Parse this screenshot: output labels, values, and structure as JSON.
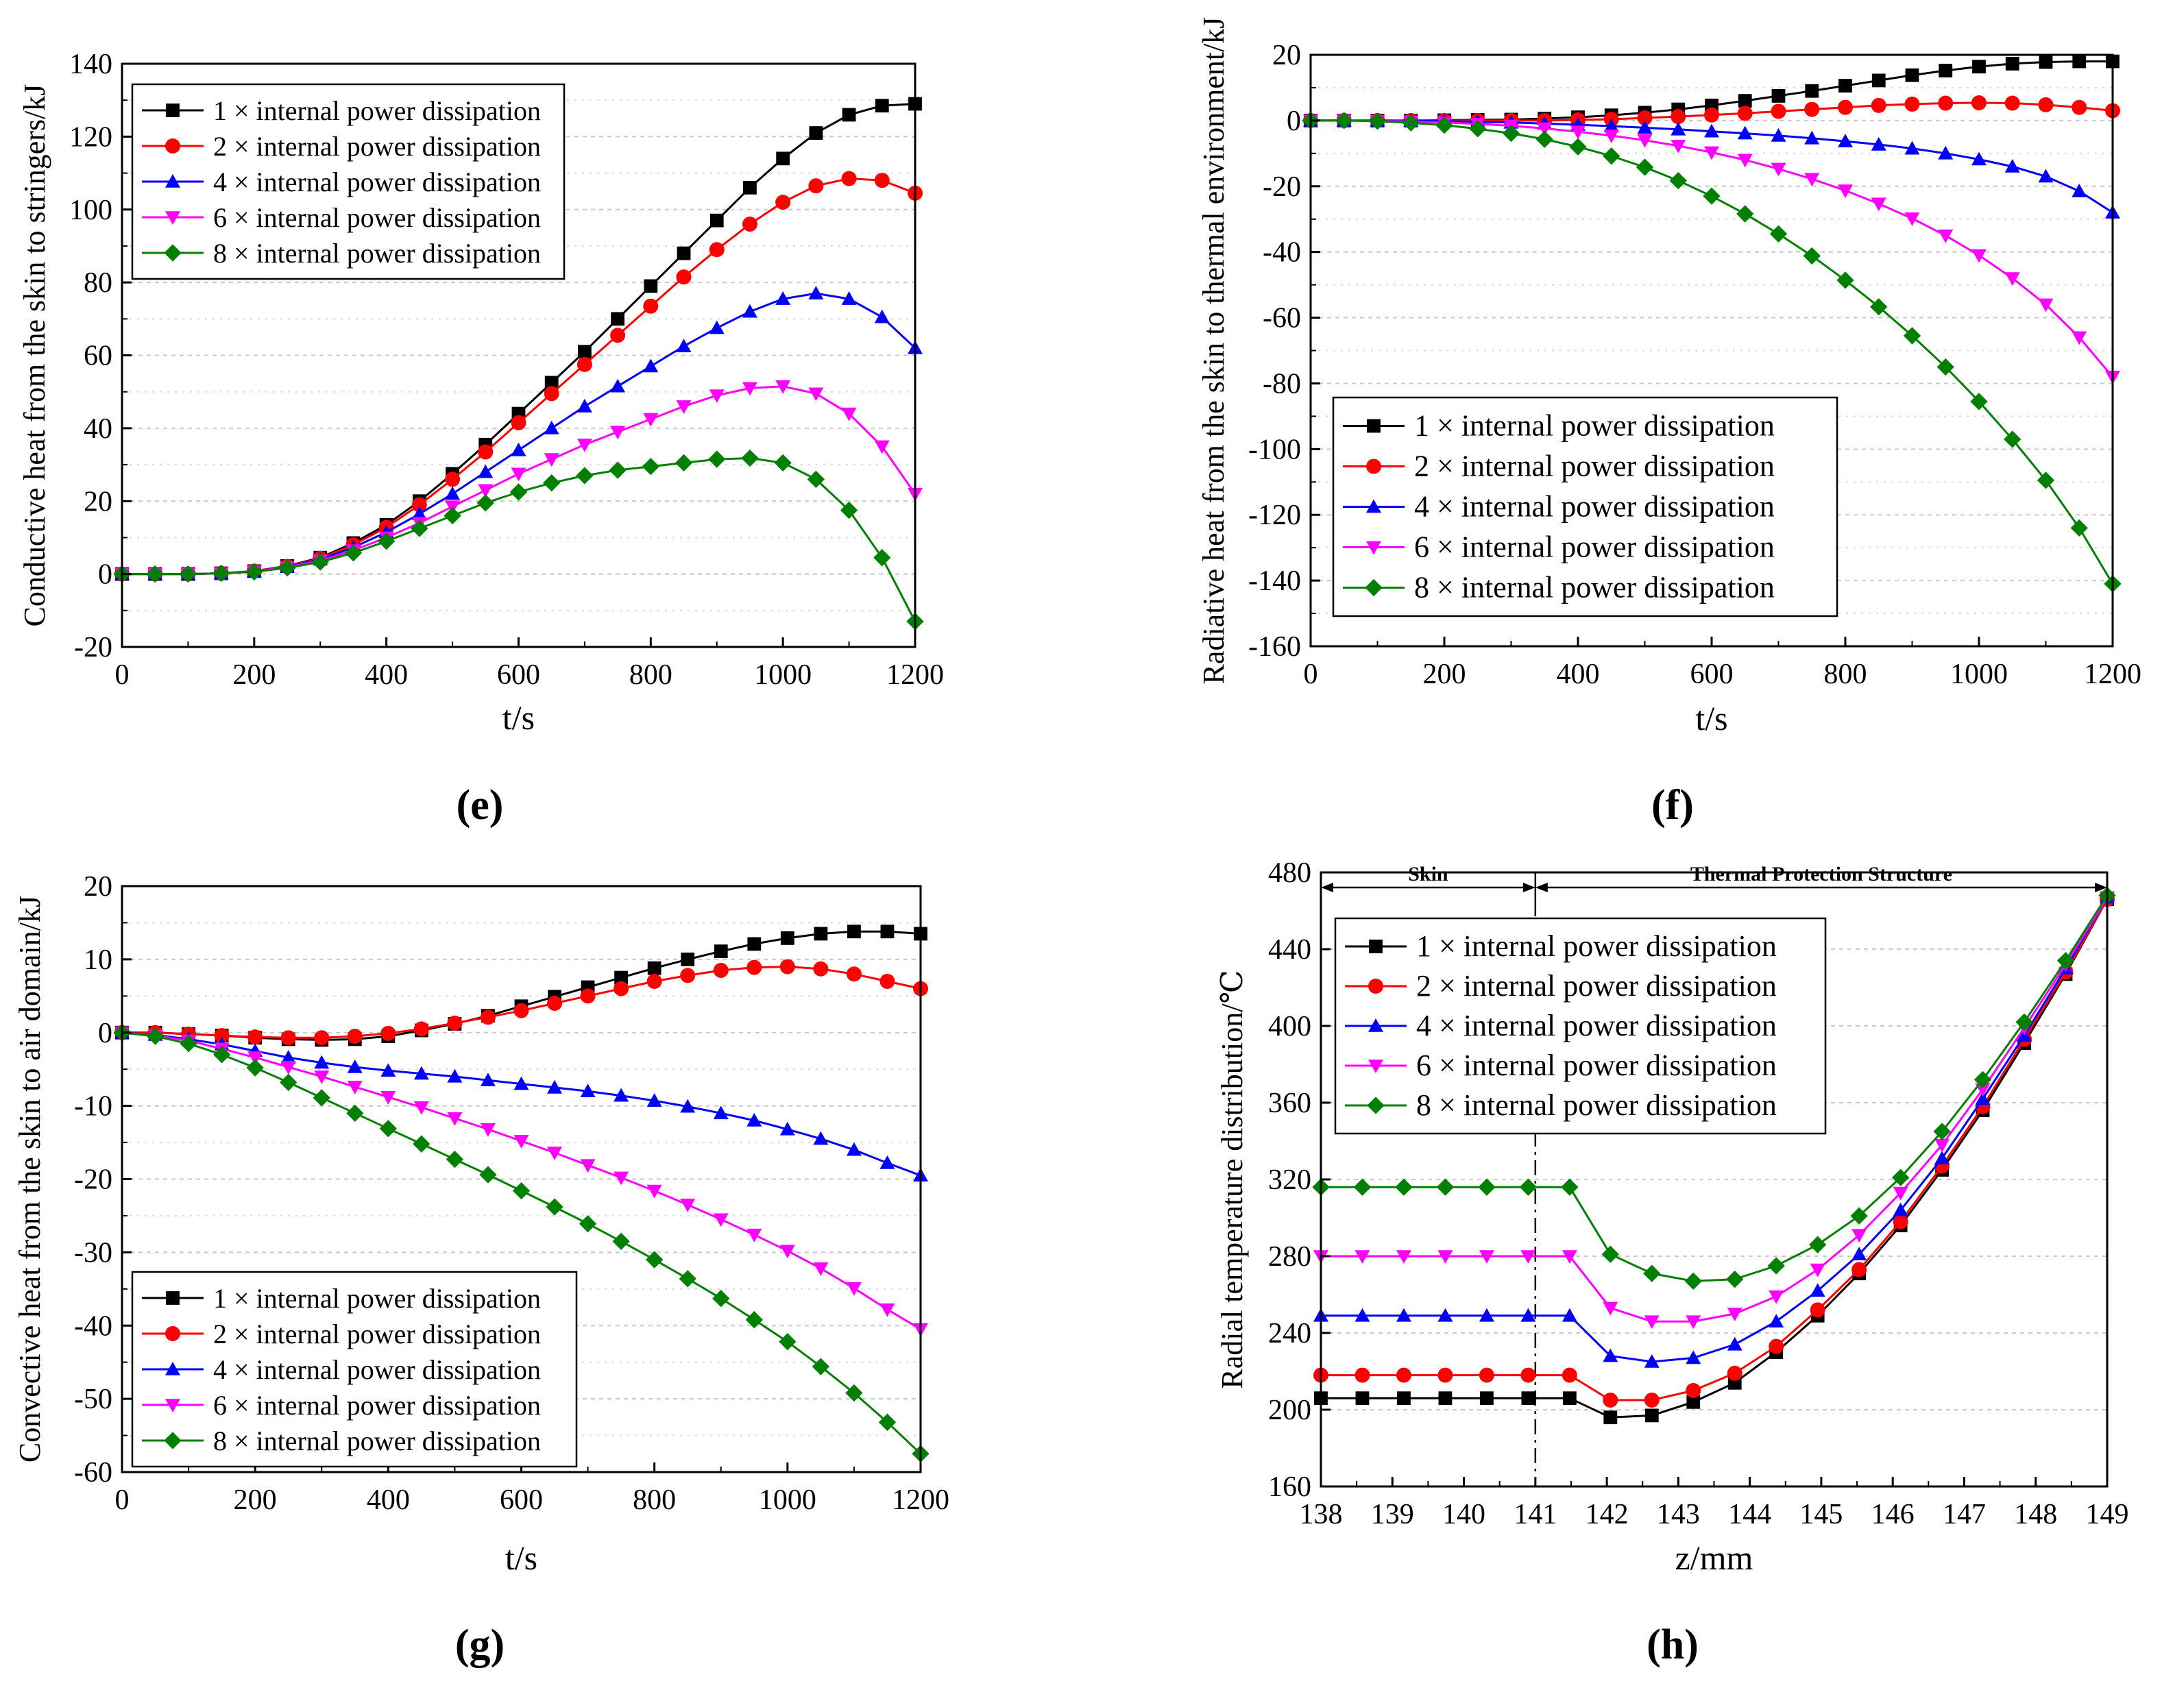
{
  "chart_data": [
    {
      "id": "e",
      "type": "line",
      "caption": "(e)",
      "xlabel": "t/s",
      "ylabel": "Conductive heat from the skin to stringers/kJ",
      "xlim": [
        0,
        1200
      ],
      "ylim": [
        -20,
        140
      ],
      "xticks": [
        "0",
        "200",
        "400",
        "600",
        "800",
        "1000",
        "1200"
      ],
      "yticks": [
        "-20",
        "0",
        "20",
        "40",
        "60",
        "80",
        "100",
        "120",
        "140"
      ],
      "legend_position": "top-left",
      "x_step": 50,
      "series": [
        {
          "name": "1 × internal power dissipation",
          "color": "#000000",
          "marker": "square",
          "values": [
            0,
            0,
            0,
            0.2,
            0.8,
            2.2,
            4.5,
            8.5,
            13.5,
            20,
            27.5,
            35.5,
            44,
            52.5,
            61,
            70,
            79,
            88,
            97,
            106,
            114,
            121,
            126,
            128.5,
            129
          ]
        },
        {
          "name": "2 × internal power dissipation",
          "color": "#ff0000",
          "marker": "circle",
          "values": [
            0,
            0,
            0,
            0.2,
            0.8,
            2.1,
            4.3,
            8,
            12.8,
            19,
            26,
            33.5,
            41.5,
            49.5,
            57.5,
            65.5,
            73.5,
            81.5,
            89,
            96,
            102,
            106.5,
            108.5,
            108,
            104.5
          ]
        },
        {
          "name": "4 × internal power dissipation",
          "color": "#0000ff",
          "marker": "triangle-up",
          "values": [
            0,
            0,
            0,
            0.2,
            0.7,
            2,
            4,
            7.3,
            11.5,
            16.5,
            22,
            28,
            34,
            40,
            46,
            51.5,
            57,
            62.5,
            67.5,
            72,
            75.5,
            77,
            75.5,
            70.5,
            62
          ]
        },
        {
          "name": "6 × internal power dissipation",
          "color": "#ff00ff",
          "marker": "triangle-down",
          "values": [
            0,
            0,
            0,
            0.2,
            0.7,
            1.9,
            3.7,
            6.5,
            10,
            14,
            18.5,
            23,
            27.5,
            31.5,
            35.5,
            39,
            42.5,
            46,
            49,
            51,
            51.5,
            49.5,
            44,
            35,
            22
          ]
        },
        {
          "name": "8 × internal power dissipation",
          "color": "#008000",
          "marker": "diamond",
          "values": [
            0,
            0,
            0,
            0.2,
            0.6,
            1.7,
            3.3,
            5.8,
            9,
            12.5,
            16,
            19.5,
            22.5,
            25,
            27,
            28.5,
            29.5,
            30.5,
            31.5,
            31.8,
            30.5,
            26,
            17.5,
            4.5,
            -13
          ]
        }
      ]
    },
    {
      "id": "f",
      "type": "line",
      "caption": "(f)",
      "xlabel": "t/s",
      "ylabel": "Radiative heat from the skin to thermal environment/kJ",
      "xlim": [
        0,
        1200
      ],
      "ylim": [
        -160,
        20
      ],
      "xticks": [
        "0",
        "200",
        "400",
        "600",
        "800",
        "1000",
        "1200"
      ],
      "yticks": [
        "-160",
        "-140",
        "-120",
        "-100",
        "-80",
        "-60",
        "-40",
        "-20",
        "0",
        "20"
      ],
      "legend_position": "bottom-left",
      "x_step": 50,
      "series": [
        {
          "name": "1 × internal power dissipation",
          "color": "#000000",
          "marker": "square",
          "values": [
            0,
            0,
            0,
            0,
            0.1,
            0.2,
            0.3,
            0.6,
            1,
            1.6,
            2.4,
            3.4,
            4.6,
            6,
            7.5,
            9,
            10.6,
            12.2,
            13.8,
            15.2,
            16.4,
            17.3,
            17.8,
            18,
            18
          ]
        },
        {
          "name": "2 × internal power dissipation",
          "color": "#ff0000",
          "marker": "circle",
          "values": [
            0,
            0,
            0,
            0,
            0,
            0,
            0,
            0,
            0.2,
            0.4,
            0.8,
            1.2,
            1.7,
            2.2,
            2.8,
            3.4,
            4,
            4.6,
            5,
            5.3,
            5.4,
            5.3,
            4.8,
            4,
            3
          ]
        },
        {
          "name": "4 × internal power dissipation",
          "color": "#0000ff",
          "marker": "triangle-up",
          "values": [
            0,
            0,
            0,
            -0.1,
            -0.2,
            -0.4,
            -0.6,
            -0.9,
            -1.3,
            -1.7,
            -2.2,
            -2.7,
            -3.3,
            -3.9,
            -4.6,
            -5.4,
            -6.3,
            -7.3,
            -8.5,
            -10,
            -11.8,
            -14,
            -17,
            -21.5,
            -28
          ]
        },
        {
          "name": "6 × internal power dissipation",
          "color": "#ff00ff",
          "marker": "triangle-down",
          "values": [
            0,
            0,
            -0.1,
            -0.3,
            -0.6,
            -1,
            -1.6,
            -2.4,
            -3.4,
            -4.6,
            -6,
            -7.7,
            -9.7,
            -12,
            -14.7,
            -17.8,
            -21.3,
            -25.3,
            -29.8,
            -35,
            -41,
            -48,
            -56,
            -66,
            -78
          ]
        },
        {
          "name": "8 × internal power dissipation",
          "color": "#008000",
          "marker": "diamond",
          "values": [
            0,
            0,
            -0.2,
            -0.7,
            -1.4,
            -2.5,
            -3.9,
            -5.7,
            -8,
            -10.8,
            -14.2,
            -18.3,
            -23,
            -28.4,
            -34.5,
            -41.2,
            -48.6,
            -56.7,
            -65.5,
            -75,
            -85.5,
            -97,
            -109.5,
            -124,
            -141
          ]
        }
      ]
    },
    {
      "id": "g",
      "type": "line",
      "caption": "(g)",
      "xlabel": "t/s",
      "ylabel": "Convective heat from the skin to air domain/kJ",
      "xlim": [
        0,
        1200
      ],
      "ylim": [
        -60,
        20
      ],
      "xticks": [
        "0",
        "200",
        "400",
        "600",
        "800",
        "1000",
        "1200"
      ],
      "yticks": [
        "-60",
        "-50",
        "-40",
        "-30",
        "-20",
        "-10",
        "0",
        "10",
        "20"
      ],
      "legend_position": "bottom-left",
      "x_step": 50,
      "series": [
        {
          "name": "1 × internal power dissipation",
          "color": "#000000",
          "marker": "square",
          "values": [
            0,
            0,
            -0.2,
            -0.4,
            -0.7,
            -0.9,
            -1,
            -0.9,
            -0.5,
            0.3,
            1.2,
            2.3,
            3.6,
            4.9,
            6.2,
            7.5,
            8.8,
            10,
            11.1,
            12.1,
            12.9,
            13.5,
            13.8,
            13.8,
            13.5
          ]
        },
        {
          "name": "2 × internal power dissipation",
          "color": "#ff0000",
          "marker": "circle",
          "values": [
            0,
            0,
            -0.2,
            -0.4,
            -0.6,
            -0.7,
            -0.7,
            -0.5,
            -0.1,
            0.5,
            1.3,
            2.1,
            3,
            4,
            5,
            6,
            7,
            7.8,
            8.5,
            8.9,
            9,
            8.7,
            8,
            7,
            6
          ]
        },
        {
          "name": "4 × internal power dissipation",
          "color": "#0000ff",
          "marker": "triangle-up",
          "values": [
            0,
            -0.3,
            -0.9,
            -1.6,
            -2.5,
            -3.4,
            -4.1,
            -4.7,
            -5.2,
            -5.6,
            -6,
            -6.5,
            -7,
            -7.5,
            -8,
            -8.6,
            -9.3,
            -10.1,
            -11,
            -12,
            -13.2,
            -14.5,
            -16,
            -17.8,
            -19.5
          ]
        },
        {
          "name": "6 × internal power dissipation",
          "color": "#ff00ff",
          "marker": "triangle-down",
          "values": [
            0,
            -0.4,
            -1.1,
            -2.2,
            -3.4,
            -4.7,
            -6,
            -7.4,
            -8.8,
            -10.2,
            -11.7,
            -13.2,
            -14.8,
            -16.4,
            -18.1,
            -19.8,
            -21.6,
            -23.5,
            -25.5,
            -27.6,
            -29.8,
            -32.2,
            -34.9,
            -37.8,
            -40.5
          ]
        },
        {
          "name": "8 × internal power dissipation",
          "color": "#008000",
          "marker": "diamond",
          "values": [
            0,
            -0.5,
            -1.5,
            -3,
            -4.8,
            -6.8,
            -8.9,
            -11,
            -13.1,
            -15.2,
            -17.3,
            -19.4,
            -21.6,
            -23.8,
            -26.1,
            -28.5,
            -31,
            -33.6,
            -36.3,
            -39.2,
            -42.2,
            -45.6,
            -49.2,
            -53.2,
            -57.5
          ]
        }
      ]
    },
    {
      "id": "h",
      "type": "line",
      "caption": "(h)",
      "xlabel": "z/mm",
      "ylabel": "Radial temperature distribution/℃",
      "xlim": [
        138,
        149
      ],
      "ylim": [
        160,
        480
      ],
      "xticks": [
        "138",
        "139",
        "140",
        "141",
        "142",
        "143",
        "144",
        "145",
        "146",
        "147",
        "148",
        "149"
      ],
      "yticks": [
        "160",
        "200",
        "240",
        "280",
        "320",
        "360",
        "400",
        "440",
        "480"
      ],
      "legend_position": "top-left",
      "regions": [
        {
          "label": "Skin",
          "from": 138,
          "to": 141
        },
        {
          "label": "Thermal Protection Structure",
          "from": 141,
          "to": 149
        }
      ],
      "x": [
        138,
        138.58,
        139.16,
        139.74,
        140.32,
        140.9,
        141.48,
        142.05,
        142.63,
        143.21,
        143.79,
        144.37,
        144.95,
        145.53,
        146.11,
        146.69,
        147.26,
        147.84,
        148.42,
        149
      ],
      "series": [
        {
          "name": "1 × internal power dissipation",
          "color": "#000000",
          "marker": "square",
          "values": [
            206,
            206,
            206,
            206,
            206,
            206,
            206,
            196,
            197,
            204,
            214,
            230,
            249,
            271,
            296,
            325,
            356,
            391,
            427,
            466
          ]
        },
        {
          "name": "2 × internal power dissipation",
          "color": "#ff0000",
          "marker": "circle",
          "values": [
            218,
            218,
            218,
            218,
            218,
            218,
            218,
            205,
            205,
            210,
            219,
            233,
            252,
            273,
            298,
            327,
            358,
            393,
            428,
            466
          ]
        },
        {
          "name": "4 × internal power dissipation",
          "color": "#0000ff",
          "marker": "triangle-up",
          "values": [
            249,
            249,
            249,
            249,
            249,
            249,
            249,
            228,
            225,
            227,
            234,
            246,
            262,
            281,
            304,
            331,
            362,
            395,
            430,
            467
          ]
        },
        {
          "name": "6 × internal power dissipation",
          "color": "#ff00ff",
          "marker": "triangle-down",
          "values": [
            280,
            280,
            280,
            280,
            280,
            280,
            280,
            253,
            246,
            246,
            250,
            259,
            273,
            291,
            313,
            338,
            367,
            399,
            432,
            467
          ]
        },
        {
          "name": "8 × internal power dissipation",
          "color": "#008000",
          "marker": "diamond",
          "values": [
            316,
            316,
            316,
            316,
            316,
            316,
            316,
            281,
            271,
            267,
            268,
            275,
            286,
            301,
            321,
            345,
            372,
            402,
            434,
            468
          ]
        }
      ]
    }
  ]
}
